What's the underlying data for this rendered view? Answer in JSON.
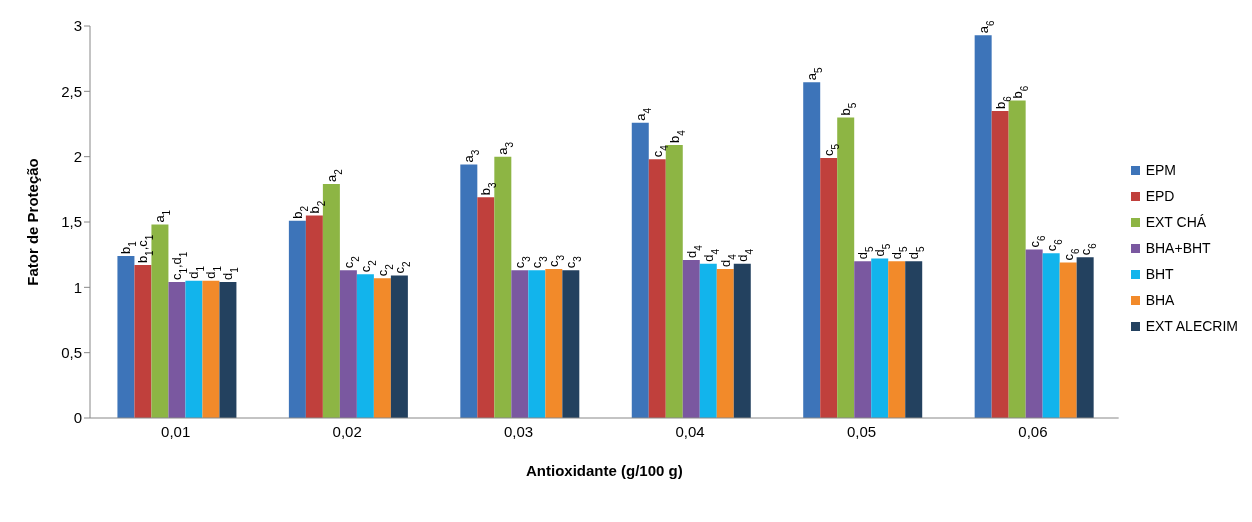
{
  "chart_data": {
    "type": "bar",
    "xlabel": "Antioxidante (g/100 g)",
    "ylabel": "Fator  de Proteção",
    "categories": [
      "0,01",
      "0,02",
      "0,03",
      "0,04",
      "0,05",
      "0,06"
    ],
    "series": [
      {
        "name": "EPM",
        "color": "#3d74b9",
        "values": [
          1.24,
          1.51,
          1.94,
          2.26,
          2.57,
          2.93
        ]
      },
      {
        "name": "EPD",
        "color": "#c0403c",
        "values": [
          1.17,
          1.55,
          1.69,
          1.98,
          1.99,
          2.35
        ]
      },
      {
        "name": "EXT CHÁ",
        "color": "#8db544",
        "values": [
          1.48,
          1.79,
          2.0,
          2.09,
          2.3,
          2.43
        ]
      },
      {
        "name": "BHA+BHT",
        "color": "#7a58a0",
        "values": [
          1.04,
          1.13,
          1.13,
          1.21,
          1.2,
          1.29
        ]
      },
      {
        "name": "BHT",
        "color": "#12b4ec",
        "values": [
          1.05,
          1.1,
          1.13,
          1.18,
          1.22,
          1.26
        ]
      },
      {
        "name": "BHA",
        "color": "#f28a2a",
        "values": [
          1.05,
          1.07,
          1.14,
          1.14,
          1.2,
          1.19
        ]
      },
      {
        "name": "EXT ALECRIM",
        "color": "#23415f",
        "values": [
          1.04,
          1.09,
          1.13,
          1.18,
          1.2,
          1.23
        ]
      }
    ],
    "annotations": [
      "b$_{1}$",
      "b$_{1}$,c$_{1}$",
      "a$_{1}$",
      "c$_{1}$,d$_{1}$",
      "d$_{1}$",
      "d$_{1}$",
      "d$_{1}$",
      "b$_{2}$",
      "b$_{2}$",
      "a$_{2}$",
      "c$_{2}$",
      "c$_{2}$",
      "c$_{2}$",
      "c$_{2}$",
      "a$_{3}$",
      "b$_{3}$",
      "a$_{3}$",
      "c$_{3}$",
      "c$_{3}$",
      "c$_{3}$",
      "c$_{3}$",
      "a$_{4}$",
      "c$_{4}$",
      "b$_{4}$",
      "d$_{4}$",
      "d$_{4}$",
      "d$_{4}$",
      "d$_{4}$",
      "a$_{5}$",
      "c$_{5}$",
      "b$_{5}$",
      "d$_{5}$",
      "d$_{5}$",
      "d$_{5}$",
      "d$_{5}$",
      "a$_{6}$",
      "b$_{6}$",
      "b$_{6}$",
      "c$_{6}$",
      "c$_{6}$",
      "c$_{6}$",
      "c$_{6}$"
    ],
    "ylim": [
      0,
      3
    ],
    "yticks": [
      0,
      {
        "value": 0.5,
        "label": "0,5"
      },
      1,
      {
        "value": 1.5,
        "label": "1,5"
      },
      2,
      {
        "value": 2.5,
        "label": "2,5"
      },
      3
    ],
    "grid": false,
    "legend": "right"
  }
}
